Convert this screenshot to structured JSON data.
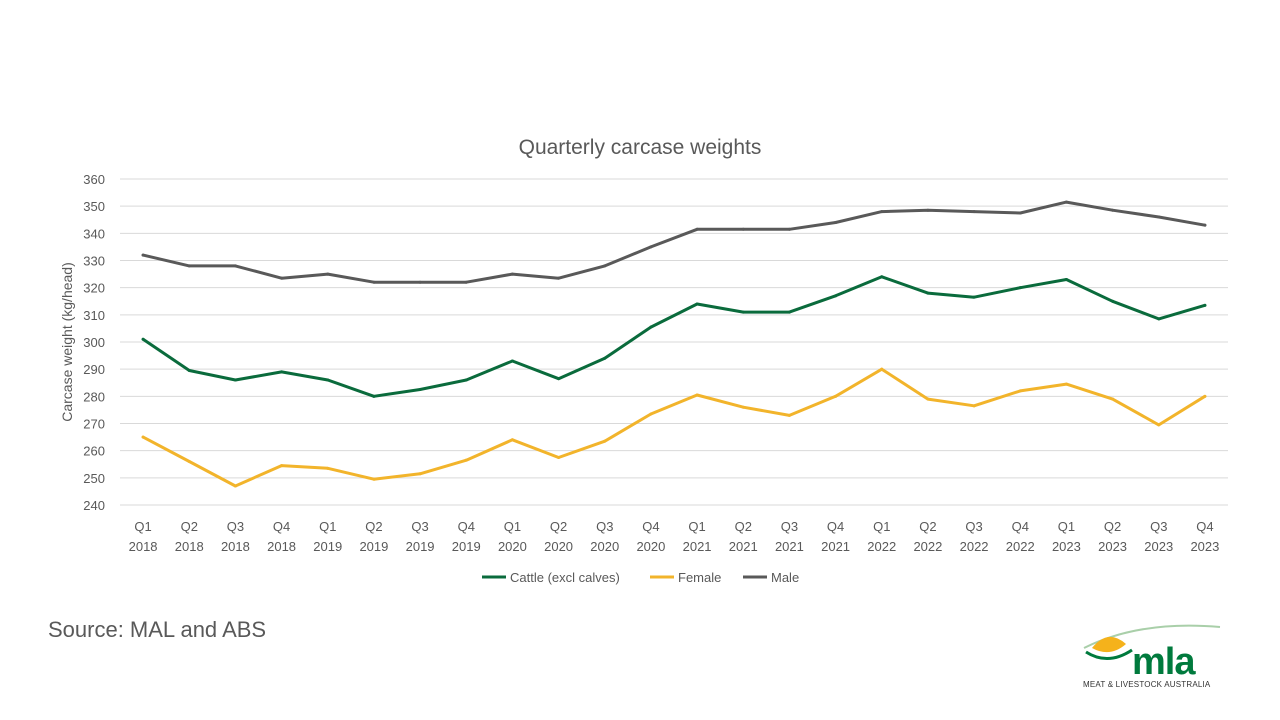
{
  "source_text": "Source: MAL and ABS",
  "logo": {
    "wordmark": "mla",
    "tagline": "MEAT & LIVESTOCK AUSTRALIA",
    "colors": {
      "green": "#007a3d",
      "yellow": "#f5b21b",
      "swoosh": "#a9cfa9"
    }
  },
  "chart_data": {
    "type": "line",
    "title": "Quarterly carcase weights",
    "xlabel": "",
    "ylabel": "Carcase weight (kg/head)",
    "ylim": [
      240,
      360
    ],
    "yticks": [
      240,
      250,
      260,
      270,
      280,
      290,
      300,
      310,
      320,
      330,
      340,
      350,
      360
    ],
    "grid": true,
    "legend_position": "bottom",
    "categories": [
      [
        "Q1",
        "2018"
      ],
      [
        "Q2",
        "2018"
      ],
      [
        "Q3",
        "2018"
      ],
      [
        "Q4",
        "2018"
      ],
      [
        "Q1",
        "2019"
      ],
      [
        "Q2",
        "2019"
      ],
      [
        "Q3",
        "2019"
      ],
      [
        "Q4",
        "2019"
      ],
      [
        "Q1",
        "2020"
      ],
      [
        "Q2",
        "2020"
      ],
      [
        "Q3",
        "2020"
      ],
      [
        "Q4",
        "2020"
      ],
      [
        "Q1",
        "2021"
      ],
      [
        "Q2",
        "2021"
      ],
      [
        "Q3",
        "2021"
      ],
      [
        "Q4",
        "2021"
      ],
      [
        "Q1",
        "2022"
      ],
      [
        "Q2",
        "2022"
      ],
      [
        "Q3",
        "2022"
      ],
      [
        "Q4",
        "2022"
      ],
      [
        "Q1",
        "2023"
      ],
      [
        "Q2",
        "2023"
      ],
      [
        "Q3",
        "2023"
      ],
      [
        "Q4",
        "2023"
      ]
    ],
    "series": [
      {
        "name": "Cattle (excl calves)",
        "color": "#0a6b3c",
        "values": [
          301,
          289.5,
          286,
          289,
          286,
          280,
          282.5,
          286,
          293,
          286.5,
          294,
          305.5,
          314,
          311,
          311,
          317,
          324,
          318,
          316.5,
          320,
          323,
          315,
          308.5,
          313.5
        ]
      },
      {
        "name": "Female",
        "color": "#f2b42b",
        "values": [
          265,
          256,
          247,
          254.5,
          253.5,
          249.5,
          251.5,
          256.5,
          264,
          257.5,
          263.5,
          273.5,
          280.5,
          276,
          273,
          280,
          290,
          279,
          276.5,
          282,
          284.5,
          279,
          269.5,
          280
        ]
      },
      {
        "name": "Male",
        "color": "#595959",
        "values": [
          332,
          328,
          328,
          323.5,
          325,
          322,
          322,
          322,
          325,
          323.5,
          328,
          335,
          341.5,
          341.5,
          341.5,
          344,
          348,
          348.5,
          348,
          347.5,
          351.5,
          348.5,
          346,
          343
        ]
      }
    ]
  }
}
